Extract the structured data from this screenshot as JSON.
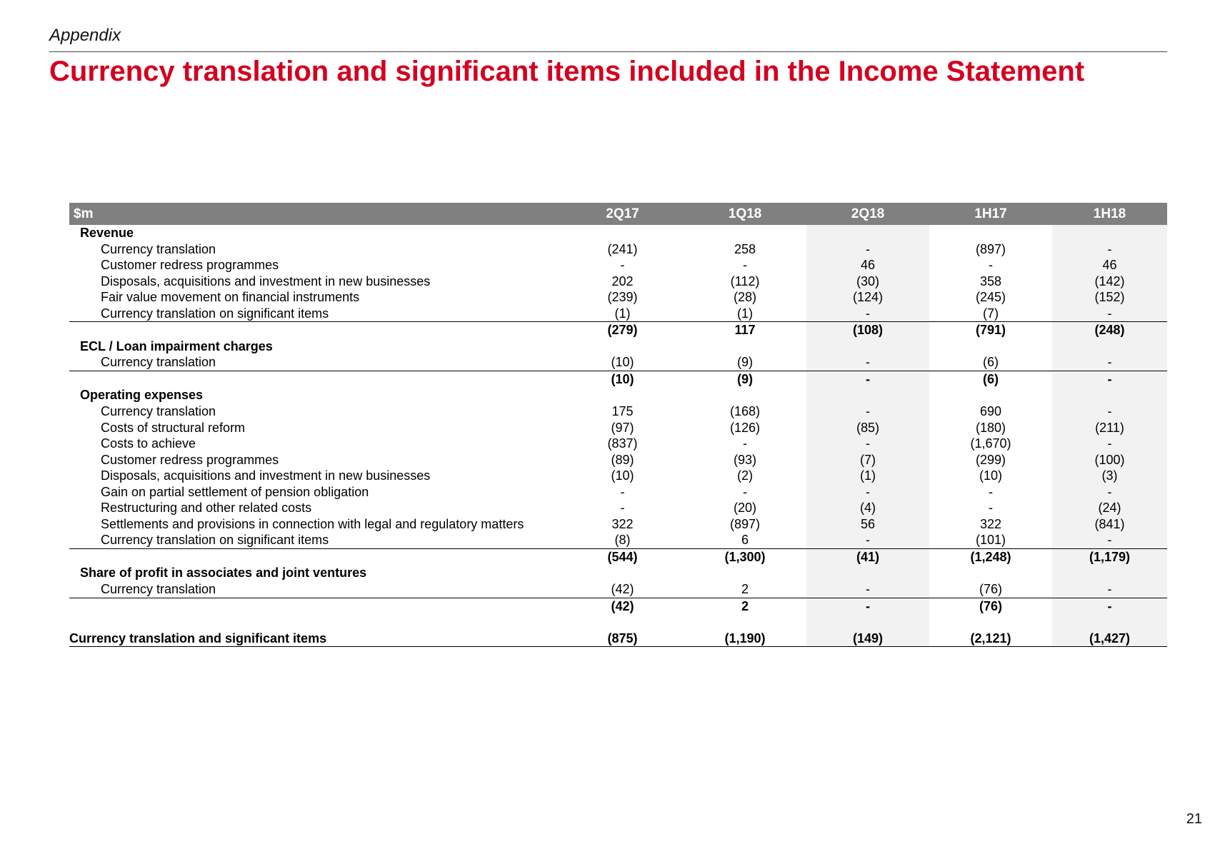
{
  "header": {
    "appendix_label": "Appendix",
    "title": "Currency translation and significant items included in the Income Statement"
  },
  "table": {
    "unit_label": "$m",
    "columns": [
      "2Q17",
      "1Q18",
      "2Q18",
      "1H17",
      "1H18"
    ],
    "rows": [
      {
        "type": "section",
        "label": "Revenue",
        "values": [
          "",
          "",
          "",
          "",
          ""
        ]
      },
      {
        "type": "item",
        "label": "Currency translation",
        "values": [
          "(241)",
          "258",
          "-",
          "(897)",
          "-"
        ]
      },
      {
        "type": "item",
        "label": "Customer redress programmes",
        "values": [
          "-",
          "-",
          "46",
          "-",
          "46"
        ]
      },
      {
        "type": "item",
        "label": "Disposals, acquisitions and investment in new businesses",
        "values": [
          "202",
          "(112)",
          "(30)",
          "358",
          "(142)"
        ]
      },
      {
        "type": "item",
        "label": "Fair value movement on financial instruments",
        "values": [
          "(239)",
          "(28)",
          "(124)",
          "(245)",
          "(152)"
        ]
      },
      {
        "type": "item",
        "label": "Currency translation on significant items",
        "values": [
          "(1)",
          "(1)",
          "-",
          "(7)",
          "-"
        ]
      },
      {
        "type": "subtotal",
        "label": "",
        "values": [
          "(279)",
          "117",
          "(108)",
          "(791)",
          "(248)"
        ]
      },
      {
        "type": "section",
        "label": "ECL / Loan impairment charges",
        "values": [
          "",
          "",
          "",
          "",
          ""
        ]
      },
      {
        "type": "item",
        "label": "Currency translation",
        "values": [
          "(10)",
          "(9)",
          "-",
          "(6)",
          "-"
        ]
      },
      {
        "type": "subtotal",
        "label": "",
        "values": [
          "(10)",
          "(9)",
          "-",
          "(6)",
          "-"
        ]
      },
      {
        "type": "section",
        "label": "Operating expenses",
        "values": [
          "",
          "",
          "",
          "",
          ""
        ]
      },
      {
        "type": "item",
        "label": "Currency translation",
        "values": [
          "175",
          "(168)",
          "-",
          "690",
          "-"
        ]
      },
      {
        "type": "item",
        "label": "Costs of structural reform",
        "values": [
          "(97)",
          "(126)",
          "(85)",
          "(180)",
          "(211)"
        ]
      },
      {
        "type": "item",
        "label": "Costs to achieve",
        "values": [
          "(837)",
          "-",
          "-",
          "(1,670)",
          "-"
        ]
      },
      {
        "type": "item",
        "label": "Customer redress programmes",
        "values": [
          "(89)",
          "(93)",
          "(7)",
          "(299)",
          "(100)"
        ]
      },
      {
        "type": "item",
        "label": "Disposals, acquisitions and investment in new businesses",
        "values": [
          "(10)",
          "(2)",
          "(1)",
          "(10)",
          "(3)"
        ]
      },
      {
        "type": "item",
        "label": "Gain on partial settlement of pension obligation",
        "values": [
          "-",
          "-",
          "-",
          "-",
          "-"
        ]
      },
      {
        "type": "item",
        "label": "Restructuring and other related costs",
        "values": [
          "-",
          "(20)",
          "(4)",
          "-",
          "(24)"
        ]
      },
      {
        "type": "item",
        "label": "Settlements and provisions in connection with legal and regulatory matters",
        "values": [
          "322",
          "(897)",
          "56",
          "322",
          "(841)"
        ]
      },
      {
        "type": "item",
        "label": "Currency translation on significant items",
        "values": [
          "(8)",
          "6",
          "-",
          "(101)",
          "-"
        ]
      },
      {
        "type": "subtotal",
        "label": "",
        "values": [
          "(544)",
          "(1,300)",
          "(41)",
          "(1,248)",
          "(1,179)"
        ]
      },
      {
        "type": "section",
        "label": "Share of profit in associates and joint ventures",
        "values": [
          "",
          "",
          "",
          "",
          ""
        ]
      },
      {
        "type": "item",
        "label": "Currency translation",
        "values": [
          "(42)",
          "2",
          "-",
          "(76)",
          "-"
        ]
      },
      {
        "type": "subtotal",
        "label": "",
        "values": [
          "(42)",
          "2",
          "-",
          "(76)",
          "-"
        ]
      },
      {
        "type": "spacer",
        "label": "",
        "values": [
          "",
          "",
          "",
          "",
          ""
        ]
      },
      {
        "type": "grand",
        "label": "Currency translation and significant items",
        "values": [
          "(875)",
          "(1,190)",
          "(149)",
          "(2,121)",
          "(1,427)"
        ]
      }
    ]
  },
  "page_number": "21",
  "colors": {
    "title": "#d40020",
    "header_fill": "#808080",
    "shaded_column_fill": "#f2f2f2"
  }
}
